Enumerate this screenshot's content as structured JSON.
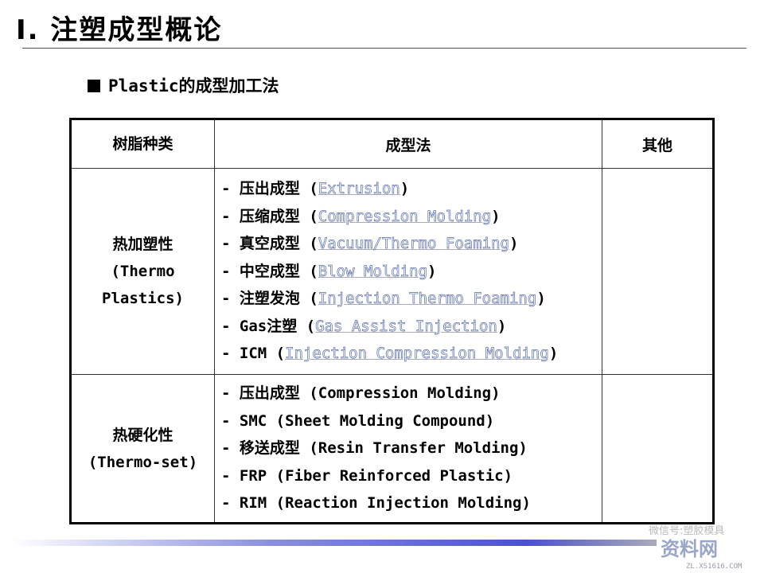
{
  "title": "Ⅰ. 注塑成型概论",
  "subtitle": "Plastic的成型加工法",
  "table": {
    "headers": [
      "树脂种类",
      "成型法",
      "其他"
    ],
    "rows": [
      {
        "type_lines": [
          "热加塑性",
          "(Thermo",
          "Plastics)"
        ],
        "methods": [
          {
            "cn": "- 压出成型 (",
            "en": "Extrusion",
            "end": ")"
          },
          {
            "cn": "- 压缩成型 (",
            "en": "Compression Molding",
            "end": ")"
          },
          {
            "cn": "- 真空成型 (",
            "en": "Vacuum/Thermo Foaming",
            "end": ")"
          },
          {
            "cn": "- 中空成型 (",
            "en": "Blow Molding",
            "end": ")"
          },
          {
            "cn": "- 注塑发泡 (",
            "en": "Injection Thermo Foaming",
            "end": ")"
          },
          {
            "cn": "- Gas注塑 (",
            "en": "Gas Assist  Injection",
            "end": ")"
          },
          {
            "cn": "- ICM (",
            "en": "Injection Compression Molding",
            "end": ")"
          }
        ],
        "other": ""
      },
      {
        "type_lines": [
          "热硬化性",
          "(Thermo-set)"
        ],
        "methods": [
          {
            "cn": "- 压出成型 (Compression Molding)"
          },
          {
            "cn": "- SMC (Sheet Molding Compound)"
          },
          {
            "cn": "- 移送成型 (Resin Transfer Molding)"
          },
          {
            "cn": "- FRP (Fiber Reinforced Plastic)"
          },
          {
            "cn": "- RIM (Reaction Injection Molding)"
          }
        ],
        "other": ""
      }
    ]
  },
  "watermark": {
    "text": "微信号:塑胶模具",
    "logo": "资料网",
    "url": "ZL.XS1616.COM"
  },
  "colors": {
    "outline_text": "#5a6fa8",
    "bar": "#4b52c9"
  }
}
